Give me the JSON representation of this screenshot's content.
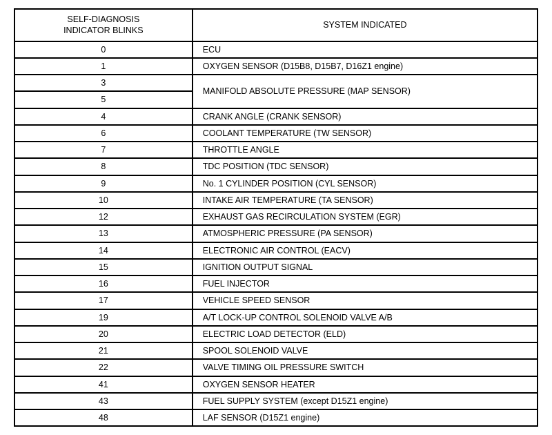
{
  "table": {
    "header_blinks_line1": "SELF-DIAGNOSIS",
    "header_blinks_line2": "INDICATOR BLINKS",
    "header_system": "SYSTEM INDICATED",
    "rows": [
      {
        "blinks": "0",
        "system": "ECU",
        "merged": false
      },
      {
        "blinks": "1",
        "system": "OXYGEN SENSOR (D15B8, D15B7, D16Z1 engine)",
        "merged": false
      },
      {
        "blinks": "3",
        "system": "MANIFOLD ABSOLUTE PRESSURE (MAP SENSOR)",
        "merged": true,
        "rowspan": 2
      },
      {
        "blinks": "5",
        "system": "",
        "merged_child": true
      },
      {
        "blinks": "4",
        "system": "CRANK ANGLE (CRANK SENSOR)",
        "merged": false
      },
      {
        "blinks": "6",
        "system": "COOLANT TEMPERATURE (TW SENSOR)",
        "merged": false
      },
      {
        "blinks": "7",
        "system": "THROTTLE ANGLE",
        "merged": false
      },
      {
        "blinks": "8",
        "system": "TDC POSITION (TDC SENSOR)",
        "merged": false
      },
      {
        "blinks": "9",
        "system": "No. 1 CYLINDER POSITION (CYL SENSOR)",
        "merged": false
      },
      {
        "blinks": "10",
        "system": "INTAKE AIR TEMPERATURE (TA SENSOR)",
        "merged": false
      },
      {
        "blinks": "12",
        "system": "EXHAUST GAS RECIRCULATION SYSTEM (EGR)",
        "merged": false
      },
      {
        "blinks": "13",
        "system": "ATMOSPHERIC PRESSURE (PA SENSOR)",
        "merged": false
      },
      {
        "blinks": "14",
        "system": "ELECTRONIC AIR CONTROL (EACV)",
        "merged": false
      },
      {
        "blinks": "15",
        "system": "IGNITION OUTPUT SIGNAL",
        "merged": false
      },
      {
        "blinks": "16",
        "system": "FUEL INJECTOR",
        "merged": false
      },
      {
        "blinks": "17",
        "system": "VEHICLE SPEED SENSOR",
        "merged": false
      },
      {
        "blinks": "19",
        "system": "A/T LOCK-UP CONTROL SOLENOID VALVE A/B",
        "merged": false
      },
      {
        "blinks": "20",
        "system": "ELECTRIC LOAD DETECTOR (ELD)",
        "merged": false
      },
      {
        "blinks": "21",
        "system": "SPOOL SOLENOID VALVE",
        "merged": false
      },
      {
        "blinks": "22",
        "system": "VALVE TIMING OIL PRESSURE SWITCH",
        "merged": false
      },
      {
        "blinks": "41",
        "system": "OXYGEN SENSOR HEATER",
        "merged": false
      },
      {
        "blinks": "43",
        "system": "FUEL SUPPLY SYSTEM (except D15Z1 engine)",
        "merged": false
      },
      {
        "blinks": "48",
        "system": "LAF SENSOR (D15Z1 engine)",
        "merged": false
      }
    ]
  }
}
